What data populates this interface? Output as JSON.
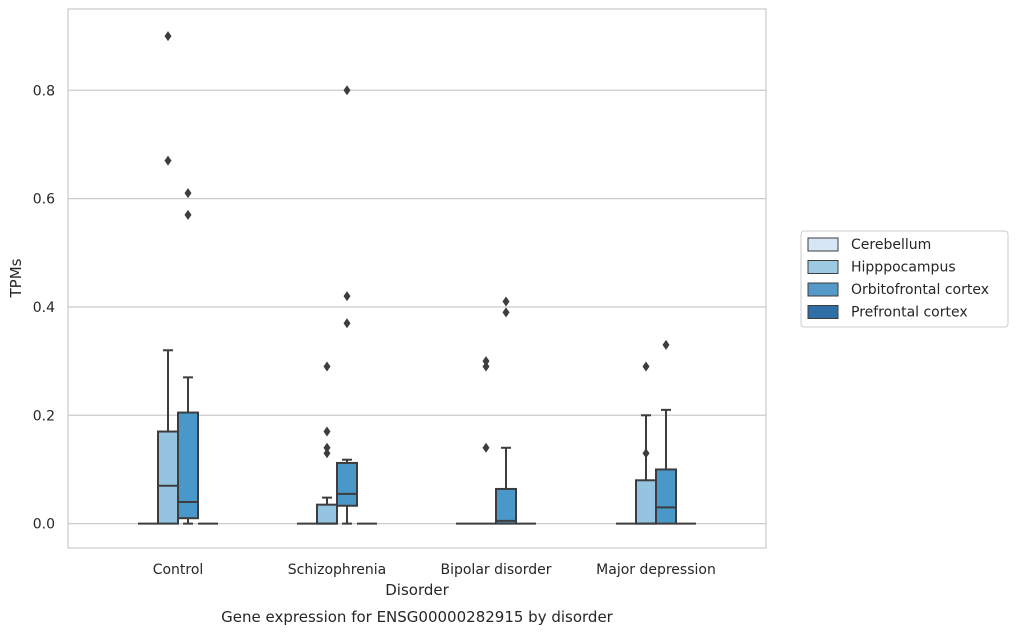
{
  "chart_data": {
    "type": "box",
    "title": "",
    "caption": "Gene expression for ENSG00000282915 by disorder",
    "xlabel": "Disorder",
    "ylabel": "TPMs",
    "ylim": [
      -0.045,
      0.95
    ],
    "yticks": [
      0.0,
      0.2,
      0.4,
      0.6,
      0.8
    ],
    "ytick_labels": [
      "0.0",
      "0.2",
      "0.4",
      "0.6",
      "0.8"
    ],
    "grid": "horizontal",
    "legend_position": "right",
    "categories": [
      "Control",
      "Schizophrenia",
      "Bipolar disorder",
      "Major depression"
    ],
    "series": [
      {
        "name": "Cerebellum",
        "color": "#d0e1f2",
        "boxes": [
          {
            "q1": 0,
            "median": 0,
            "q3": 0,
            "whisker_low": 0,
            "whisker_high": 0,
            "outliers": []
          },
          {
            "q1": 0,
            "median": 0,
            "q3": 0,
            "whisker_low": 0,
            "whisker_high": 0,
            "outliers": []
          },
          {
            "q1": 0,
            "median": 0,
            "q3": 0,
            "whisker_low": 0,
            "whisker_high": 0,
            "outliers": []
          },
          {
            "q1": 0,
            "median": 0,
            "q3": 0,
            "whisker_low": 0,
            "whisker_high": 0,
            "outliers": []
          }
        ]
      },
      {
        "name": "Hipppocampus",
        "color": "#94c4df",
        "boxes": [
          {
            "q1": 0,
            "median": 0.07,
            "q3": 0.17,
            "whisker_low": 0,
            "whisker_high": 0.32,
            "outliers": [
              0.9,
              0.67
            ]
          },
          {
            "q1": 0,
            "median": 0,
            "q3": 0.035,
            "whisker_low": 0,
            "whisker_high": 0.048,
            "outliers": [
              0.13,
              0.29,
              0.17,
              0.14
            ]
          },
          {
            "q1": 0,
            "median": 0,
            "q3": 0,
            "whisker_low": 0,
            "whisker_high": 0,
            "outliers": [
              0.14,
              0.3,
              0.29
            ]
          },
          {
            "q1": 0,
            "median": 0,
            "q3": 0.08,
            "whisker_low": 0,
            "whisker_high": 0.2,
            "outliers": [
              0.13,
              0.29
            ]
          }
        ]
      },
      {
        "name": "Orbitofrontal cortex",
        "color": "#4a98c9",
        "boxes": [
          {
            "q1": 0.01,
            "median": 0.04,
            "q3": 0.205,
            "whisker_low": 0,
            "whisker_high": 0.27,
            "outliers": [
              0.61,
              0.57
            ]
          },
          {
            "q1": 0.033,
            "median": 0.055,
            "q3": 0.112,
            "whisker_low": 0,
            "whisker_high": 0.118,
            "outliers": [
              0.8,
              0.42,
              0.37
            ]
          },
          {
            "q1": 0,
            "median": 0.005,
            "q3": 0.064,
            "whisker_low": 0,
            "whisker_high": 0.14,
            "outliers": [
              0.41,
              0.39
            ]
          },
          {
            "q1": 0,
            "median": 0.03,
            "q3": 0.1,
            "whisker_low": 0,
            "whisker_high": 0.21,
            "outliers": [
              0.33
            ]
          }
        ]
      },
      {
        "name": "Prefrontal cortex",
        "color": "#2171b5",
        "boxes": [
          {
            "q1": 0,
            "median": 0,
            "q3": 0,
            "whisker_low": 0,
            "whisker_high": 0,
            "outliers": []
          },
          {
            "q1": 0,
            "median": 0,
            "q3": 0,
            "whisker_low": 0,
            "whisker_high": 0,
            "outliers": []
          },
          {
            "q1": 0,
            "median": 0,
            "q3": 0,
            "whisker_low": 0,
            "whisker_high": 0,
            "outliers": []
          },
          {
            "q1": 0,
            "median": 0,
            "q3": 0,
            "whisker_low": 0,
            "whisker_high": 0,
            "outliers": []
          }
        ]
      }
    ],
    "legend_fill_colors": [
      "#d6e6f4",
      "#9ecae1",
      "#5599c8",
      "#2e6fa8"
    ]
  }
}
